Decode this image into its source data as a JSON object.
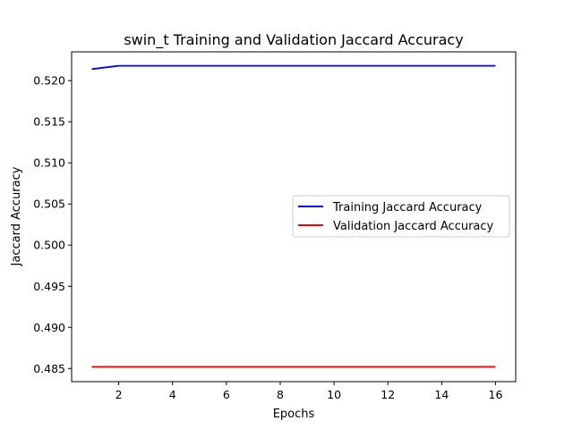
{
  "chart_data": {
    "type": "line",
    "title": "swin_t Training and Validation Jaccard Accuracy",
    "xlabel": "Epochs",
    "ylabel": "Jaccard Accuracy",
    "xlim": [
      0.25,
      16.75
    ],
    "ylim": [
      0.4834,
      0.5235
    ],
    "xticks": [
      2,
      4,
      6,
      8,
      10,
      12,
      14,
      16
    ],
    "yticks": [
      0.485,
      0.49,
      0.495,
      0.5,
      0.505,
      0.51,
      0.515,
      0.52
    ],
    "ytick_labels": [
      "0.485",
      "0.490",
      "0.495",
      "0.500",
      "0.505",
      "0.510",
      "0.515",
      "0.520"
    ],
    "x": [
      1,
      2,
      3,
      4,
      5,
      6,
      7,
      8,
      9,
      10,
      11,
      12,
      13,
      14,
      15,
      16
    ],
    "series": [
      {
        "name": "Training Jaccard Accuracy",
        "color": "#0000ff",
        "values": [
          0.5214,
          0.5218,
          0.5218,
          0.5218,
          0.5218,
          0.5218,
          0.5218,
          0.5218,
          0.5218,
          0.5218,
          0.5218,
          0.5218,
          0.5218,
          0.5218,
          0.5218,
          0.5218
        ]
      },
      {
        "name": "Validation Jaccard Accuracy",
        "color": "#ff0000",
        "values": [
          0.4852,
          0.4852,
          0.4852,
          0.4852,
          0.4852,
          0.4852,
          0.4852,
          0.4852,
          0.4852,
          0.4852,
          0.4852,
          0.4852,
          0.4852,
          0.4852,
          0.4852,
          0.4852
        ]
      }
    ],
    "grid": false,
    "legend_position": "center-right"
  }
}
